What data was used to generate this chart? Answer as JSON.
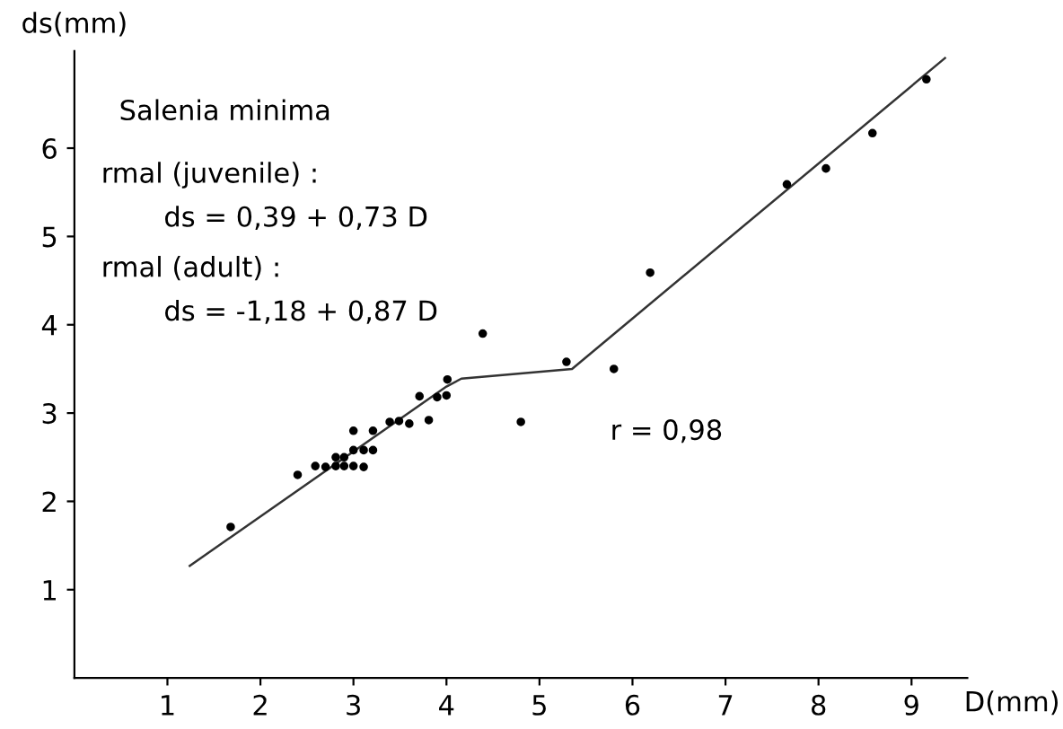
{
  "chart_data": {
    "type": "scatter",
    "title": "Salenia minima",
    "xlabel": "D(mm)",
    "ylabel": "ds(mm)",
    "annotations": [
      "rmal (juvenile) :",
      "ds = 0,39 + 0,73 D",
      "rmal (adult) :",
      "ds = -1,18 + 0,87 D",
      "r = 0,98"
    ],
    "xlim": [
      0,
      9.6
    ],
    "ylim": [
      0,
      7.1
    ],
    "xticks": [
      1,
      2,
      3,
      4,
      5,
      6,
      7,
      8,
      9
    ],
    "yticks": [
      1,
      2,
      3,
      4,
      5,
      6
    ],
    "grid": false,
    "legend": false,
    "marker": "circle",
    "series": [
      {
        "color": "#000000",
        "x": [
          1.68,
          2.4,
          2.59,
          2.7,
          2.81,
          2.9,
          2.81,
          2.9,
          3.0,
          3.11,
          3.0,
          3.11,
          3.21,
          3.0,
          3.21,
          3.39,
          3.49,
          3.6,
          3.81,
          3.71,
          3.9,
          4.0,
          4.01,
          4.39,
          4.8,
          5.29,
          5.8,
          6.19,
          7.66,
          8.08,
          8.58,
          9.16
        ],
        "values": [
          1.71,
          2.3,
          2.4,
          2.39,
          2.5,
          2.5,
          2.4,
          2.4,
          2.4,
          2.39,
          2.58,
          2.58,
          2.58,
          2.8,
          2.8,
          2.9,
          2.91,
          2.88,
          2.92,
          3.19,
          3.18,
          3.2,
          3.38,
          3.9,
          2.9,
          3.58,
          3.5,
          4.59,
          5.59,
          5.77,
          6.17,
          6.78
        ]
      },
      {
        "type": "line",
        "color": "#333333",
        "line_style": "solid",
        "marker": "none",
        "x": [
          1.24,
          4.0,
          4.16,
          5.35,
          9.36
        ],
        "values": [
          1.27,
          3.3,
          3.39,
          3.5,
          7.02
        ]
      }
    ]
  }
}
